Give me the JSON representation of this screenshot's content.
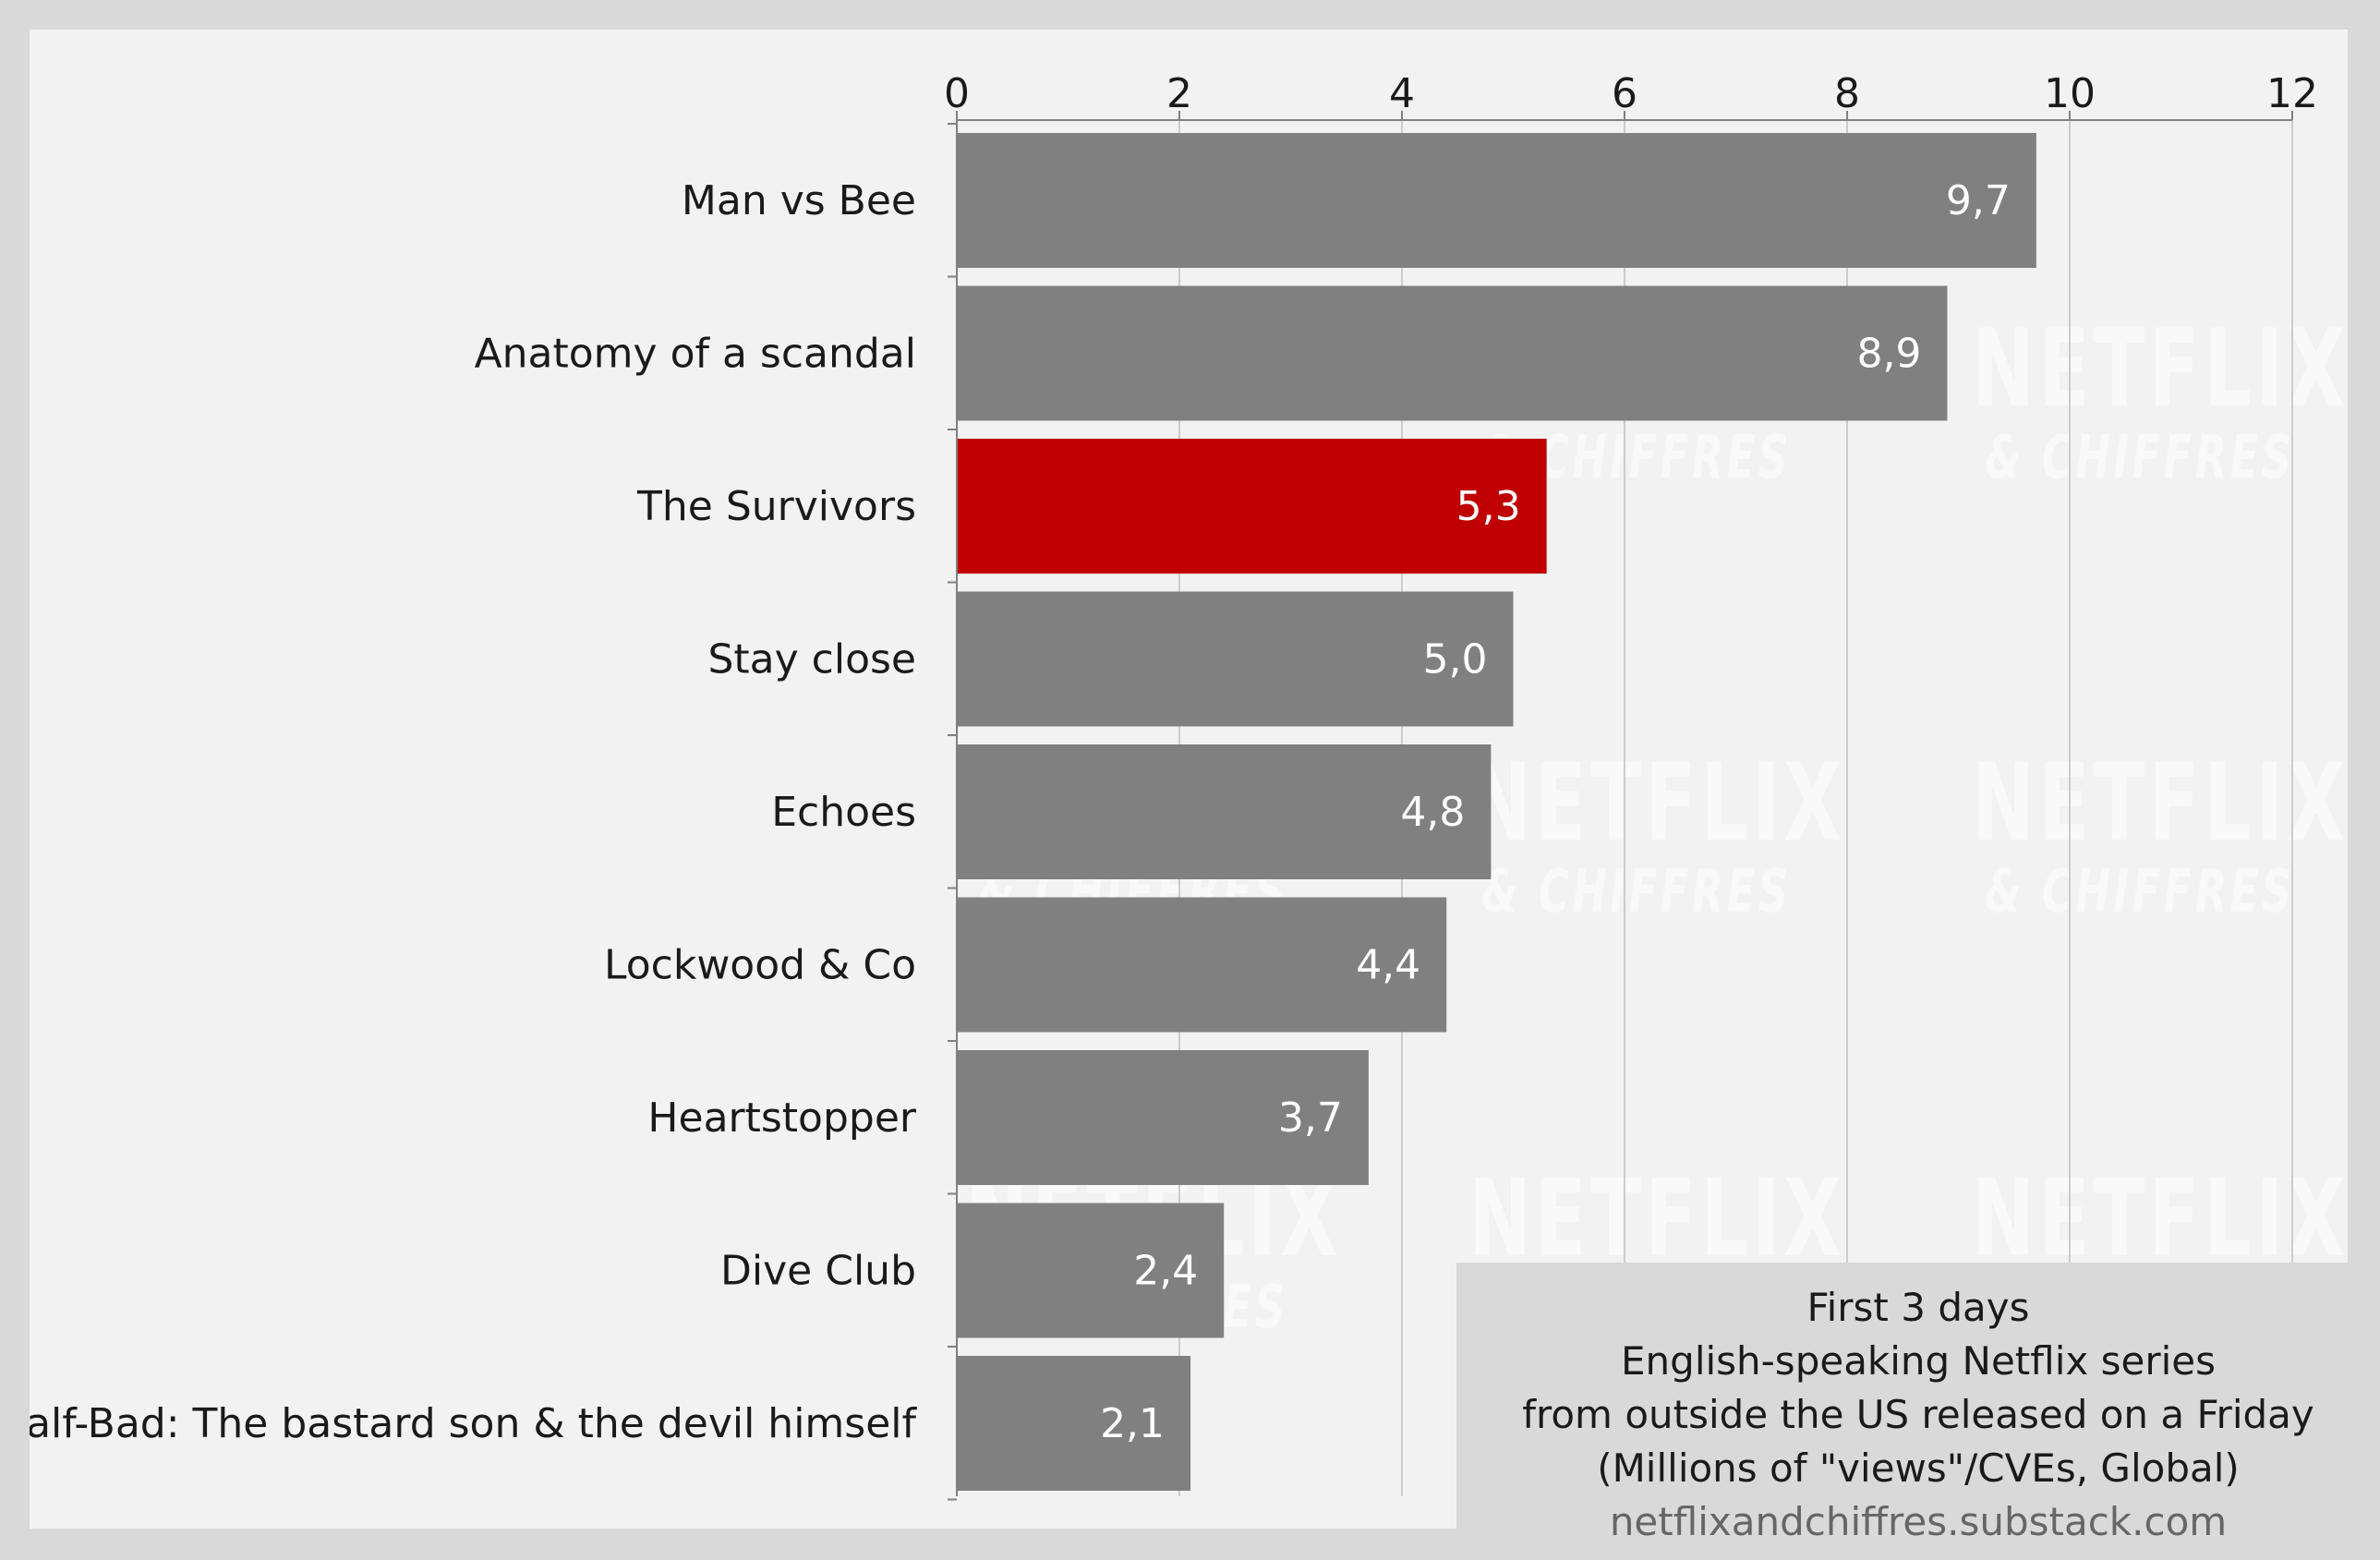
{
  "chart_data": {
    "type": "bar",
    "orientation": "horizontal",
    "categories": [
      "Man vs Bee",
      "Anatomy of a scandal",
      "The Survivors",
      "Stay close",
      "Echoes",
      "Lockwood & Co",
      "Heartstopper",
      "Dive Club",
      "Half-Bad: The bastard son & the devil himself"
    ],
    "values": [
      9.7,
      8.9,
      5.3,
      5.0,
      4.8,
      4.4,
      3.7,
      2.4,
      2.1
    ],
    "value_labels": [
      "9,7",
      "8,9",
      "5,3",
      "5,0",
      "4,8",
      "4,4",
      "3,7",
      "2,4",
      "2,1"
    ],
    "highlight_index": 2,
    "xlim": [
      0,
      12
    ],
    "xticks": [
      0,
      2,
      4,
      6,
      8,
      10,
      12
    ],
    "x_axis_position": "top",
    "grid": true,
    "colors": {
      "bar": "#808080",
      "highlight": "#c00000",
      "grid": "#cccccc",
      "axis": "#808080"
    }
  },
  "info_box": {
    "lines": [
      "First 3 days",
      "English-speaking Netflix series",
      "from outside the US released on a Friday",
      "(Millions of \"views\"/CVEs, Global)"
    ],
    "url": "netflixandchiffres.substack.com"
  },
  "watermark": {
    "line1": "NETFLIX",
    "line2": "& CHIFFRES"
  }
}
